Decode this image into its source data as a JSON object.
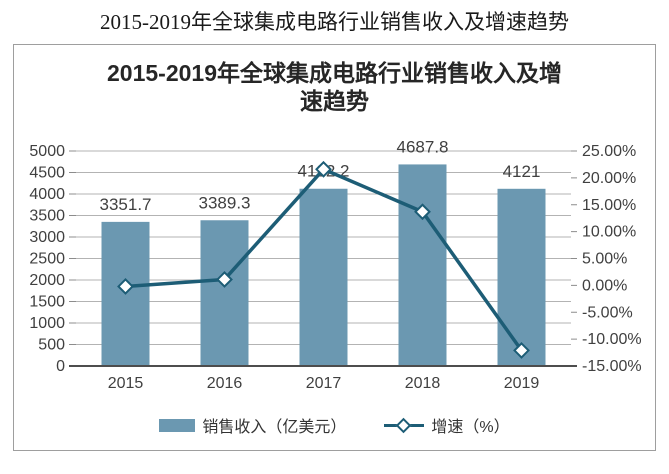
{
  "page_title": "2015-2019年全球集成电路行业销售收入及增速趋势",
  "chart_data": {
    "type": "bar+line",
    "title": "2015-2019年全球集成电路行业销售收入及增速趋势",
    "title_line1": "2015-2019年全球集成电路行业销售收入及增",
    "title_line2": "速趋势",
    "categories": [
      "2015",
      "2016",
      "2017",
      "2018",
      "2019"
    ],
    "series": [
      {
        "name": "销售收入（亿美元）",
        "type": "bar",
        "axis": "left",
        "color": "#6b98b1",
        "values": [
          3351.7,
          3389.3,
          4122.2,
          4687.8,
          4121
        ],
        "labels": [
          "3351.7",
          "3389.3",
          "4122.2",
          "4687.8",
          "4121"
        ]
      },
      {
        "name": "增速（%）",
        "type": "line",
        "axis": "right",
        "color": "#1d5d76",
        "marker": "diamond",
        "values": [
          -0.2,
          1.1,
          21.6,
          13.7,
          -12.1
        ]
      }
    ],
    "left_axis": {
      "min": 0,
      "max": 5000,
      "step": 500,
      "ticks": [
        "5000",
        "4500",
        "4000",
        "3500",
        "3000",
        "2500",
        "2000",
        "1500",
        "1000",
        "500",
        "0"
      ]
    },
    "right_axis": {
      "min": -15,
      "max": 25,
      "step": 5,
      "ticks": [
        "25.00%",
        "20.00%",
        "15.00%",
        "10.00%",
        "5.00%",
        "0.00%",
        "-5.00%",
        "-10.00%",
        "-15.00%"
      ]
    },
    "grid": true,
    "legend_position": "bottom",
    "colors": {
      "grid": "#b3b3b3",
      "axis_line": "#4d4d4d",
      "tick": "#8c8c8c",
      "text": "#404040",
      "title": "#262626",
      "border": "#9e9e9e",
      "marker_fill": "#ffffff"
    }
  }
}
